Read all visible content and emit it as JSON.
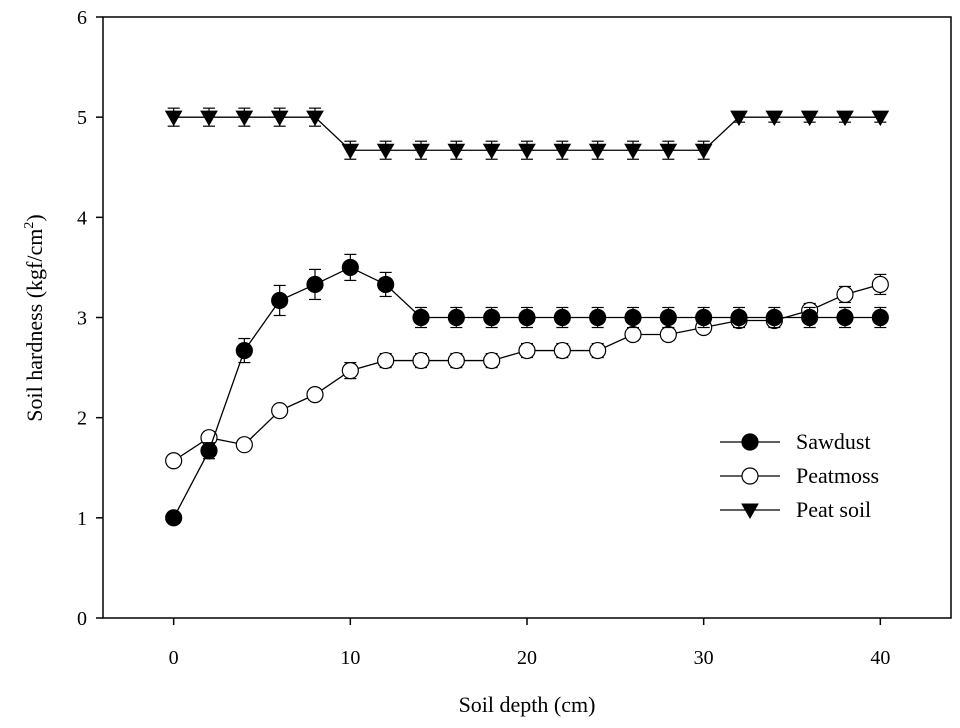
{
  "chart_data": {
    "type": "line",
    "title": "",
    "xlabel": "Soil depth (cm)",
    "ylabel_main": "Soil hardness (kgf/cm",
    "ylabel_sup": "2",
    "ylabel_close": ")",
    "xlim": [
      -4,
      44
    ],
    "ylim": [
      0,
      6
    ],
    "xticks": [
      0,
      10,
      20,
      30,
      40
    ],
    "yticks": [
      0,
      1,
      2,
      3,
      4,
      5,
      6
    ],
    "xtick_labels": [
      "0",
      "10",
      "20",
      "30",
      "40"
    ],
    "ytick_labels": [
      "0",
      "1",
      "2",
      "3",
      "4",
      "5",
      "6"
    ],
    "grid": false,
    "legend_position": "right",
    "x": [
      0,
      2,
      4,
      6,
      8,
      10,
      12,
      14,
      16,
      18,
      20,
      22,
      24,
      26,
      28,
      30,
      32,
      34,
      36,
      38,
      40
    ],
    "series": [
      {
        "name": "Sawdust",
        "marker": "filled-circle",
        "values": [
          1.0,
          1.67,
          2.67,
          3.17,
          3.33,
          3.5,
          3.33,
          3.0,
          3.0,
          3.0,
          3.0,
          3.0,
          3.0,
          3.0,
          3.0,
          3.0,
          3.0,
          3.0,
          3.0,
          3.0,
          3.0
        ],
        "errors": [
          0,
          0.08,
          0.12,
          0.15,
          0.15,
          0.13,
          0.12,
          0.1,
          0.1,
          0.1,
          0.1,
          0.1,
          0.1,
          0.1,
          0.1,
          0.1,
          0.1,
          0.1,
          0.1,
          0.1,
          0.1
        ]
      },
      {
        "name": "Peatmoss",
        "marker": "open-circle",
        "values": [
          1.57,
          1.8,
          1.73,
          2.07,
          2.23,
          2.47,
          2.57,
          2.57,
          2.57,
          2.57,
          2.67,
          2.67,
          2.67,
          2.83,
          2.83,
          2.9,
          2.97,
          2.97,
          3.07,
          3.23,
          3.33
        ],
        "errors": [
          0,
          0.06,
          0,
          0.05,
          0.05,
          0.08,
          0.07,
          0.07,
          0.07,
          0.07,
          0.07,
          0.07,
          0.07,
          0.06,
          0.06,
          0.05,
          0.05,
          0.05,
          0.07,
          0.08,
          0.1
        ]
      },
      {
        "name": "Peat soil",
        "marker": "filled-triangle-down",
        "values": [
          5.0,
          5.0,
          5.0,
          5.0,
          5.0,
          4.67,
          4.67,
          4.67,
          4.67,
          4.67,
          4.67,
          4.67,
          4.67,
          4.67,
          4.67,
          4.67,
          5.0,
          5.0,
          5.0,
          5.0,
          5.0
        ],
        "errors": [
          0.09,
          0.09,
          0.09,
          0.09,
          0.09,
          0.09,
          0.09,
          0.09,
          0.09,
          0.09,
          0.09,
          0.09,
          0.09,
          0.09,
          0.09,
          0.09,
          0.05,
          0.05,
          0.05,
          0.05,
          0.05
        ]
      }
    ]
  }
}
